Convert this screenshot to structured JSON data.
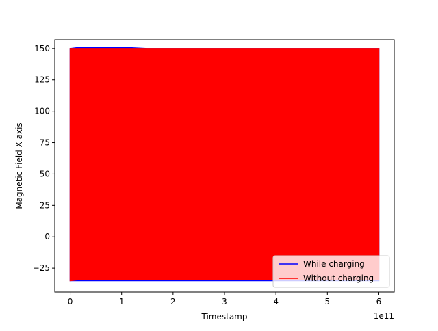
{
  "chart_data": {
    "type": "line",
    "title": "",
    "xlabel": "Timestamp",
    "ylabel": "Magnetic Field X axis",
    "x_offset_label": "1e11",
    "xlim": [
      -0.3,
      6.3
    ],
    "ylim": [
      -44,
      157
    ],
    "x_ticks": [
      0,
      1,
      2,
      3,
      4,
      5,
      6
    ],
    "x_tick_labels": [
      "0",
      "1",
      "2",
      "3",
      "4",
      "5",
      "6"
    ],
    "y_ticks": [
      -25,
      0,
      25,
      50,
      75,
      100,
      125,
      150
    ],
    "y_tick_labels": [
      "−25",
      "0",
      "25",
      "50",
      "75",
      "100",
      "125",
      "150"
    ],
    "grid": false,
    "legend_placement": "lower-right",
    "series": [
      {
        "name": "While charging",
        "color": "#0000ff",
        "x": [
          0,
          0.2,
          0.5,
          0.8,
          1.0,
          1.5,
          2.0,
          2.3,
          2.5,
          3.0,
          3.1,
          3.3,
          3.5,
          4.0,
          4.5,
          5.0,
          5.5,
          6.0
        ],
        "y_max": [
          150,
          151,
          151,
          151,
          151,
          150,
          150,
          150,
          150,
          150,
          150,
          150,
          150,
          150,
          150,
          150,
          150,
          150
        ],
        "y_min": [
          -35,
          -35,
          -35,
          -35,
          -35,
          -35,
          -35,
          -35,
          -35,
          -35,
          -35,
          -35,
          -35,
          -35,
          -35,
          -35,
          -35,
          -35
        ]
      },
      {
        "name": "Without charging",
        "color": "#ff0000",
        "x": [
          0,
          0.2,
          0.5,
          0.8,
          1.0,
          1.5,
          2.0,
          2.3,
          2.5,
          3.0,
          3.1,
          3.3,
          3.5,
          4.0,
          4.5,
          5.0,
          5.5,
          6.0
        ],
        "y_max": [
          150,
          150,
          150,
          150,
          150,
          150,
          150,
          150,
          150,
          150,
          150,
          150,
          150,
          150,
          150,
          150,
          150,
          150
        ],
        "y_min": [
          -35,
          -34,
          -34,
          -34,
          -34,
          -34,
          -34,
          -34,
          -34,
          -34,
          -34,
          -34,
          -34,
          -34,
          -34,
          -34,
          -34,
          -34
        ]
      }
    ]
  }
}
